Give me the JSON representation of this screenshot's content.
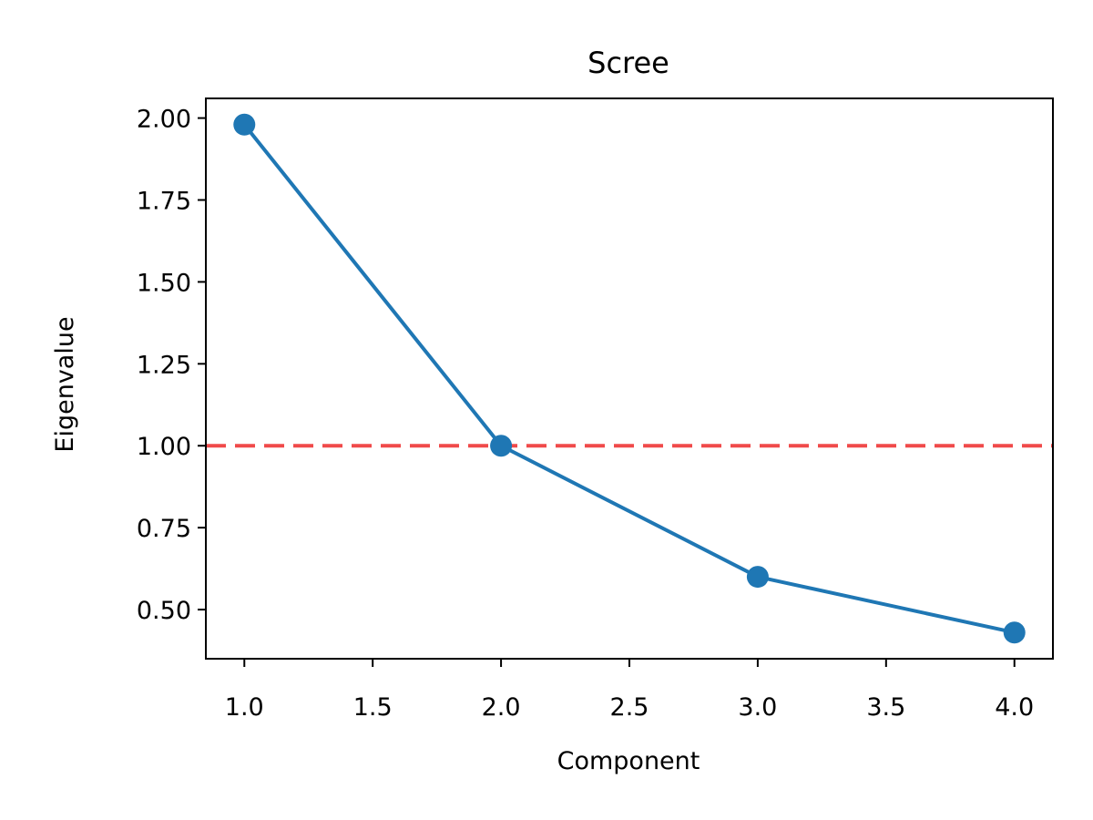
{
  "chart_data": {
    "type": "line",
    "title": "Scree",
    "xlabel": "Component",
    "ylabel": "Eigenvalue",
    "xlim": [
      0.85,
      4.15
    ],
    "ylim": [
      0.35,
      2.06
    ],
    "xticks": [
      1.0,
      1.5,
      2.0,
      2.5,
      3.0,
      3.5,
      4.0
    ],
    "xtick_labels": [
      "1.0",
      "1.5",
      "2.0",
      "2.5",
      "3.0",
      "3.5",
      "4.0"
    ],
    "yticks": [
      0.5,
      0.75,
      1.0,
      1.25,
      1.5,
      1.75,
      2.0
    ],
    "ytick_labels": [
      "0.50",
      "0.75",
      "1.00",
      "1.25",
      "1.50",
      "1.75",
      "2.00"
    ],
    "grid": false,
    "series": [
      {
        "x": [
          1,
          2,
          3,
          4
        ],
        "values": [
          1.98,
          1.0,
          0.6,
          0.43
        ],
        "color": "#1f77b4",
        "marker": "circle"
      }
    ],
    "reference_lines": [
      {
        "orientation": "horizontal",
        "y": 1.0,
        "color": "#f04a4a",
        "style": "dashed"
      }
    ]
  }
}
